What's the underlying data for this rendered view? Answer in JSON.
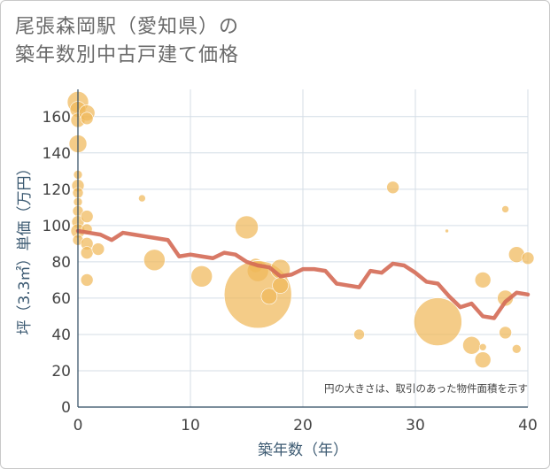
{
  "title": {
    "line1": "尾張森岡駅（愛知県）の",
    "line2": "築年数別中古戸建て価格"
  },
  "chart_data": {
    "type": "scatter",
    "xlabel": "築年数（年）",
    "ylabel": "坪（3.3㎡）単価（万円）",
    "xlim": [
      0,
      40
    ],
    "ylim": [
      0,
      175
    ],
    "xticks": [
      0,
      10,
      20,
      30,
      40
    ],
    "yticks": [
      0,
      20,
      40,
      60,
      80,
      100,
      120,
      140,
      160
    ],
    "grid": true,
    "note": "円の大きさは、取引のあった物件面積を示す",
    "colors": {
      "bubble": "#f0b85a",
      "line": "#d46a55"
    },
    "bubbles": [
      {
        "x": 0,
        "y": 168,
        "s": 12
      },
      {
        "x": 0,
        "y": 164,
        "s": 9
      },
      {
        "x": 0,
        "y": 158,
        "s": 8
      },
      {
        "x": 0,
        "y": 145,
        "s": 10
      },
      {
        "x": 0.8,
        "y": 162,
        "s": 9
      },
      {
        "x": 0.8,
        "y": 159,
        "s": 7
      },
      {
        "x": 0,
        "y": 128,
        "s": 5
      },
      {
        "x": 0,
        "y": 122,
        "s": 7
      },
      {
        "x": 0,
        "y": 118,
        "s": 6
      },
      {
        "x": 0,
        "y": 113,
        "s": 5
      },
      {
        "x": 0,
        "y": 108,
        "s": 6
      },
      {
        "x": 0,
        "y": 102,
        "s": 7
      },
      {
        "x": 0,
        "y": 97,
        "s": 8
      },
      {
        "x": 0,
        "y": 92,
        "s": 6
      },
      {
        "x": 0.8,
        "y": 105,
        "s": 7
      },
      {
        "x": 0.8,
        "y": 98,
        "s": 6
      },
      {
        "x": 0.8,
        "y": 90,
        "s": 7
      },
      {
        "x": 0.8,
        "y": 85,
        "s": 7
      },
      {
        "x": 1.8,
        "y": 87,
        "s": 7
      },
      {
        "x": 0.8,
        "y": 70,
        "s": 7
      },
      {
        "x": 5.7,
        "y": 115,
        "s": 4
      },
      {
        "x": 6.8,
        "y": 81,
        "s": 12
      },
      {
        "x": 11,
        "y": 72,
        "s": 12
      },
      {
        "x": 15,
        "y": 99,
        "s": 13
      },
      {
        "x": 15.8,
        "y": 78,
        "s": 8
      },
      {
        "x": 16,
        "y": 75,
        "s": 12
      },
      {
        "x": 16,
        "y": 62,
        "s": 38
      },
      {
        "x": 17,
        "y": 61,
        "s": 9
      },
      {
        "x": 18,
        "y": 76,
        "s": 11
      },
      {
        "x": 18,
        "y": 67,
        "s": 9
      },
      {
        "x": 25,
        "y": 40,
        "s": 6
      },
      {
        "x": 28,
        "y": 121,
        "s": 7
      },
      {
        "x": 32,
        "y": 47,
        "s": 27
      },
      {
        "x": 32.8,
        "y": 97,
        "s": 2
      },
      {
        "x": 35,
        "y": 34,
        "s": 10
      },
      {
        "x": 36,
        "y": 70,
        "s": 9
      },
      {
        "x": 36,
        "y": 26,
        "s": 9
      },
      {
        "x": 36,
        "y": 33,
        "s": 4
      },
      {
        "x": 38,
        "y": 109,
        "s": 4
      },
      {
        "x": 38,
        "y": 60,
        "s": 9
      },
      {
        "x": 38,
        "y": 41,
        "s": 7
      },
      {
        "x": 39,
        "y": 84,
        "s": 9
      },
      {
        "x": 39,
        "y": 32,
        "s": 5
      },
      {
        "x": 40,
        "y": 82,
        "s": 7
      }
    ],
    "line": {
      "x": [
        0,
        1,
        2,
        3,
        4,
        5,
        6,
        7,
        8,
        9,
        10,
        11,
        12,
        13,
        14,
        15,
        16,
        17,
        18,
        19,
        20,
        21,
        22,
        23,
        24,
        25,
        26,
        27,
        28,
        29,
        30,
        31,
        32,
        33,
        34,
        35,
        36,
        37,
        38,
        39,
        40
      ],
      "y": [
        97,
        96,
        95,
        92,
        96,
        95,
        94,
        93,
        92,
        83,
        84,
        83,
        82,
        85,
        84,
        80,
        78,
        77,
        72,
        73,
        76,
        76,
        75,
        68,
        67,
        66,
        75,
        74,
        79,
        78,
        74,
        69,
        68,
        61,
        55,
        57,
        50,
        49,
        58,
        63,
        62
      ]
    }
  }
}
